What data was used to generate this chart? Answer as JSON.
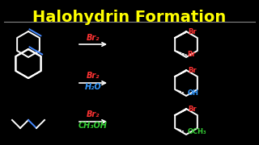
{
  "title": "Halohydrin Formation",
  "title_color": "#FFFF00",
  "title_fontsize": 14,
  "bg_color": "#000000",
  "row1_reagent": "Br₂",
  "row2_reagent": "Br₂",
  "row2_solvent": "H₂O",
  "row3_reagent": "Br₂",
  "row3_solvent": "CH₃OH",
  "reagent_color": "#FF3333",
  "solvent_color_h2o": "#3399FF",
  "solvent_color_ch3oh": "#33CC33",
  "arrow_color": "#FFFFFF",
  "molecule_color": "#FFFFFF",
  "br_color": "#FF3333",
  "oh_color": "#3399FF",
  "och3_color": "#33CC33",
  "separator_color": "#888888",
  "figw": 3.2,
  "figh": 1.8,
  "dpi": 100
}
